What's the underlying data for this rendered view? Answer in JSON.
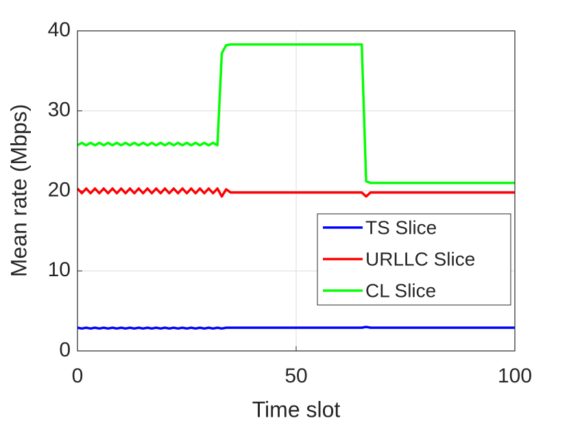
{
  "chart_data": {
    "type": "line",
    "xlabel": "Time slot",
    "ylabel": "Mean rate (Mbps)",
    "x": [
      0,
      1,
      2,
      3,
      4,
      5,
      6,
      7,
      8,
      9,
      10,
      11,
      12,
      13,
      14,
      15,
      16,
      17,
      18,
      19,
      20,
      21,
      22,
      23,
      24,
      25,
      26,
      27,
      28,
      29,
      30,
      31,
      32,
      33,
      34,
      35,
      36,
      37,
      38,
      39,
      40,
      41,
      42,
      43,
      44,
      45,
      46,
      47,
      48,
      49,
      50,
      51,
      52,
      53,
      54,
      55,
      56,
      57,
      58,
      59,
      60,
      61,
      62,
      63,
      64,
      65,
      66,
      67,
      68,
      69,
      70,
      71,
      72,
      73,
      74,
      75,
      76,
      77,
      78,
      79,
      80,
      81,
      82,
      83,
      84,
      85,
      86,
      87,
      88,
      89,
      90,
      91,
      92,
      93,
      94,
      95,
      96,
      97,
      98,
      99,
      100
    ],
    "series": [
      {
        "name": "TS Slice",
        "color": "#0000ff",
        "values": [
          2.9,
          2.8,
          2.9,
          2.8,
          2.9,
          2.8,
          2.9,
          2.8,
          2.9,
          2.8,
          2.9,
          2.8,
          2.9,
          2.8,
          2.9,
          2.8,
          2.9,
          2.8,
          2.9,
          2.8,
          2.9,
          2.8,
          2.9,
          2.8,
          2.9,
          2.8,
          2.9,
          2.8,
          2.9,
          2.8,
          2.9,
          2.8,
          2.9,
          2.8,
          2.9,
          2.9,
          2.9,
          2.9,
          2.9,
          2.9,
          2.9,
          2.9,
          2.9,
          2.9,
          2.9,
          2.9,
          2.9,
          2.9,
          2.9,
          2.9,
          2.9,
          2.9,
          2.9,
          2.9,
          2.9,
          2.9,
          2.9,
          2.9,
          2.9,
          2.9,
          2.9,
          2.9,
          2.9,
          2.9,
          2.9,
          2.9,
          3.0,
          2.9,
          2.9,
          2.9,
          2.9,
          2.9,
          2.9,
          2.9,
          2.9,
          2.9,
          2.9,
          2.9,
          2.9,
          2.9,
          2.9,
          2.9,
          2.9,
          2.9,
          2.9,
          2.9,
          2.9,
          2.9,
          2.9,
          2.9,
          2.9,
          2.9,
          2.9,
          2.9,
          2.9,
          2.9,
          2.9,
          2.9,
          2.9,
          2.9,
          2.9
        ]
      },
      {
        "name": "URLLC Slice",
        "color": "#ff0000",
        "values": [
          20.3,
          19.7,
          20.3,
          19.7,
          20.3,
          19.7,
          20.3,
          19.7,
          20.3,
          19.7,
          20.3,
          19.7,
          20.3,
          19.7,
          20.3,
          19.7,
          20.3,
          19.7,
          20.3,
          19.7,
          20.3,
          19.7,
          20.3,
          19.7,
          20.3,
          19.7,
          20.3,
          19.7,
          20.3,
          19.7,
          20.3,
          19.7,
          20.3,
          19.3,
          20.2,
          19.8,
          19.8,
          19.8,
          19.8,
          19.8,
          19.8,
          19.8,
          19.8,
          19.8,
          19.8,
          19.8,
          19.8,
          19.8,
          19.8,
          19.8,
          19.8,
          19.8,
          19.8,
          19.8,
          19.8,
          19.8,
          19.8,
          19.8,
          19.8,
          19.8,
          19.8,
          19.8,
          19.8,
          19.8,
          19.8,
          19.8,
          19.3,
          19.8,
          19.8,
          19.8,
          19.8,
          19.8,
          19.8,
          19.8,
          19.8,
          19.8,
          19.8,
          19.8,
          19.8,
          19.8,
          19.8,
          19.8,
          19.8,
          19.8,
          19.8,
          19.8,
          19.8,
          19.8,
          19.8,
          19.8,
          19.8,
          19.8,
          19.8,
          19.8,
          19.8,
          19.8,
          19.8,
          19.8,
          19.8,
          19.8,
          19.8
        ]
      },
      {
        "name": "CL Slice",
        "color": "#00ff00",
        "values": [
          25.7,
          26.0,
          25.7,
          26.0,
          25.7,
          26.0,
          25.7,
          26.0,
          25.7,
          26.0,
          25.7,
          26.0,
          25.7,
          26.0,
          25.7,
          26.0,
          25.7,
          26.0,
          25.7,
          26.0,
          25.7,
          26.0,
          25.7,
          26.0,
          25.7,
          26.0,
          25.7,
          26.0,
          25.7,
          26.0,
          25.7,
          26.0,
          25.7,
          37.2,
          38.2,
          38.3,
          38.3,
          38.3,
          38.3,
          38.3,
          38.3,
          38.3,
          38.3,
          38.3,
          38.3,
          38.3,
          38.3,
          38.3,
          38.3,
          38.3,
          38.3,
          38.3,
          38.3,
          38.3,
          38.3,
          38.3,
          38.3,
          38.3,
          38.3,
          38.3,
          38.3,
          38.3,
          38.3,
          38.3,
          38.3,
          38.3,
          21.2,
          21.0,
          21.0,
          21.0,
          21.0,
          21.0,
          21.0,
          21.0,
          21.0,
          21.0,
          21.0,
          21.0,
          21.0,
          21.0,
          21.0,
          21.0,
          21.0,
          21.0,
          21.0,
          21.0,
          21.0,
          21.0,
          21.0,
          21.0,
          21.0,
          21.0,
          21.0,
          21.0,
          21.0,
          21.0,
          21.0,
          21.0,
          21.0,
          21.0,
          21.0
        ]
      }
    ],
    "xlim": [
      0,
      100
    ],
    "xticks": [
      0,
      50,
      100
    ],
    "ylim": [
      0,
      40
    ],
    "yticks": [
      0,
      10,
      20,
      30,
      40
    ],
    "grid": true,
    "legend": "east"
  }
}
